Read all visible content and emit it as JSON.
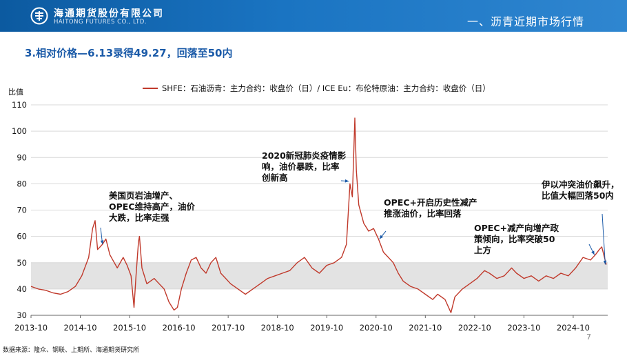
{
  "header": {
    "company_cn": "海通期货股份有限公司",
    "company_en": "HAITONG FUTURES CO., LTD.",
    "section_title": "一、沥青近期市场行情",
    "logo_icon": "haitong-logo-icon",
    "bar_color": "#1565b0"
  },
  "subtitle": "3.相对价格—6.13录得49.27，回落至50内",
  "legend_label": "SHFE：石油沥青：主力合约：收盘价（日）/ ICE Eu：布伦特原油：主力合约：收盘价（日）",
  "ylabel": "比值",
  "page_number": "7",
  "footnote": "数据来源：隆众、钢联、上期所、海通期货研究所",
  "chart_data": {
    "type": "line",
    "title": "",
    "xlabel": "",
    "ylabel": "比值",
    "ylim": [
      30,
      110
    ],
    "yticks": [
      30,
      40,
      50,
      60,
      70,
      80,
      90,
      100,
      110
    ],
    "xticks": [
      "2013-10",
      "2014-10",
      "2015-10",
      "2016-10",
      "2017-10",
      "2018-10",
      "2019-10",
      "2020-10",
      "2021-10",
      "2022-10",
      "2023-10",
      "2024-10"
    ],
    "xrange": [
      2013.75,
      2025.45
    ],
    "grid": true,
    "band": [
      40,
      50
    ],
    "line_color": "#c0392b",
    "series": [
      {
        "name": "SHFE：石油沥青：主力合约：收盘价（日）/ ICE Eu：布伦特原油：主力合约：收盘价（日）",
        "points": [
          [
            2013.75,
            41
          ],
          [
            2013.9,
            40
          ],
          [
            2014.05,
            39.5
          ],
          [
            2014.2,
            38.5
          ],
          [
            2014.35,
            38
          ],
          [
            2014.5,
            39
          ],
          [
            2014.65,
            41
          ],
          [
            2014.78,
            45
          ],
          [
            2014.92,
            52
          ],
          [
            2015.0,
            63
          ],
          [
            2015.05,
            66
          ],
          [
            2015.1,
            55
          ],
          [
            2015.2,
            57
          ],
          [
            2015.27,
            59
          ],
          [
            2015.35,
            53
          ],
          [
            2015.5,
            48
          ],
          [
            2015.62,
            52
          ],
          [
            2015.7,
            49
          ],
          [
            2015.78,
            45
          ],
          [
            2015.84,
            33
          ],
          [
            2015.88,
            45
          ],
          [
            2015.93,
            58
          ],
          [
            2015.95,
            60
          ],
          [
            2016.0,
            48
          ],
          [
            2016.1,
            42
          ],
          [
            2016.25,
            44
          ],
          [
            2016.35,
            42
          ],
          [
            2016.45,
            40
          ],
          [
            2016.55,
            35
          ],
          [
            2016.65,
            32
          ],
          [
            2016.72,
            33
          ],
          [
            2016.8,
            40
          ],
          [
            2016.9,
            46
          ],
          [
            2017.0,
            51
          ],
          [
            2017.1,
            52
          ],
          [
            2017.2,
            48
          ],
          [
            2017.3,
            46
          ],
          [
            2017.4,
            50
          ],
          [
            2017.5,
            52
          ],
          [
            2017.6,
            46
          ],
          [
            2017.7,
            44
          ],
          [
            2017.8,
            42
          ],
          [
            2017.95,
            40
          ],
          [
            2018.1,
            38
          ],
          [
            2018.25,
            40
          ],
          [
            2018.4,
            42
          ],
          [
            2018.55,
            44
          ],
          [
            2018.7,
            45
          ],
          [
            2018.85,
            46
          ],
          [
            2019.0,
            47
          ],
          [
            2019.15,
            50
          ],
          [
            2019.3,
            52
          ],
          [
            2019.45,
            48
          ],
          [
            2019.6,
            46
          ],
          [
            2019.75,
            49
          ],
          [
            2019.9,
            50
          ],
          [
            2020.05,
            52
          ],
          [
            2020.15,
            57
          ],
          [
            2020.22,
            80
          ],
          [
            2020.27,
            75
          ],
          [
            2020.32,
            105
          ],
          [
            2020.35,
            85
          ],
          [
            2020.4,
            72
          ],
          [
            2020.5,
            65
          ],
          [
            2020.6,
            62
          ],
          [
            2020.7,
            63
          ],
          [
            2020.8,
            59
          ],
          [
            2020.9,
            54
          ],
          [
            2021.0,
            52
          ],
          [
            2021.1,
            50
          ],
          [
            2021.2,
            46
          ],
          [
            2021.3,
            43
          ],
          [
            2021.45,
            41
          ],
          [
            2021.6,
            40
          ],
          [
            2021.75,
            38
          ],
          [
            2021.9,
            36
          ],
          [
            2022.0,
            38
          ],
          [
            2022.15,
            36
          ],
          [
            2022.27,
            31
          ],
          [
            2022.35,
            37
          ],
          [
            2022.5,
            40
          ],
          [
            2022.65,
            42
          ],
          [
            2022.8,
            44
          ],
          [
            2022.95,
            47
          ],
          [
            2023.05,
            46
          ],
          [
            2023.2,
            44
          ],
          [
            2023.35,
            45
          ],
          [
            2023.5,
            48
          ],
          [
            2023.6,
            46
          ],
          [
            2023.75,
            44
          ],
          [
            2023.9,
            45
          ],
          [
            2024.05,
            43
          ],
          [
            2024.2,
            45
          ],
          [
            2024.35,
            44
          ],
          [
            2024.5,
            46
          ],
          [
            2024.65,
            45
          ],
          [
            2024.8,
            48
          ],
          [
            2024.95,
            52
          ],
          [
            2025.1,
            51
          ],
          [
            2025.2,
            53
          ],
          [
            2025.28,
            55
          ],
          [
            2025.33,
            56
          ],
          [
            2025.37,
            53
          ],
          [
            2025.42,
            49.27
          ]
        ]
      }
    ],
    "annotations": [
      {
        "lines": [
          "美国页岩油增产、",
          "OPEC维持高产，油价",
          "大跌，比率走强"
        ],
        "target": [
          2015.2,
          57
        ]
      },
      {
        "lines": [
          "2020新冠肺炎疫情影",
          "响，油价暴跌，比率",
          "创新高"
        ],
        "target": [
          2020.2,
          81
        ]
      },
      {
        "lines": [
          "OPEC+开启历史性减产",
          "推涨油价，比率回落"
        ],
        "target": [
          2020.82,
          59
        ]
      },
      {
        "lines": [
          "OPEC+减产向增产政",
          "策倾向，比率突破50",
          "上方"
        ],
        "target": [
          2025.18,
          53
        ]
      },
      {
        "lines": [
          "伊以冲突油价飙升，",
          "比值大幅回落50内"
        ],
        "target": [
          2025.4,
          49.3
        ]
      }
    ]
  }
}
